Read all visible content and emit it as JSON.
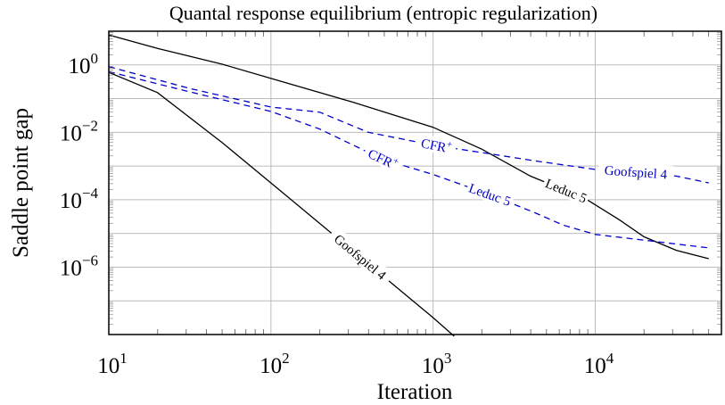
{
  "chart_data": {
    "type": "line",
    "title": "Quantal response equilibrium (entropic regularization)",
    "xlabel": "Iteration",
    "ylabel": "Saddle point gap",
    "xscale": "log",
    "yscale": "log",
    "xlim": [
      10,
      60000
    ],
    "ylim": [
      1e-08,
      10
    ],
    "grid": true,
    "x_ticks": [
      {
        "base": "10",
        "exp": "1",
        "value": 10
      },
      {
        "base": "10",
        "exp": "2",
        "value": 100
      },
      {
        "base": "10",
        "exp": "3",
        "value": 1000
      },
      {
        "base": "10",
        "exp": "4",
        "value": 10000
      }
    ],
    "y_ticks": [
      {
        "base": "10",
        "exp": "0",
        "value": 1
      },
      {
        "base": "10",
        "exp": "−2",
        "value": 0.01
      },
      {
        "base": "10",
        "exp": "−4",
        "value": 0.0001
      },
      {
        "base": "10",
        "exp": "−6",
        "value": 1e-06
      }
    ],
    "series": [
      {
        "name": "Leduc 5",
        "color": "#000000",
        "dash": false,
        "points_log10": [
          [
            1,
            0.89
          ],
          [
            1.3,
            0.49
          ],
          [
            1.7,
            0.02
          ],
          [
            2.0,
            -0.4
          ],
          [
            2.5,
            -1.1
          ],
          [
            3.0,
            -1.85
          ],
          [
            3.3,
            -2.5
          ],
          [
            3.6,
            -3.3
          ],
          [
            3.94,
            -3.97
          ],
          [
            4.0,
            -4.15
          ],
          [
            4.15,
            -4.6
          ],
          [
            4.3,
            -5.1
          ],
          [
            4.5,
            -5.5
          ],
          [
            4.7,
            -5.75
          ]
        ],
        "label_at": 3.82
      },
      {
        "name": "Goofspiel 4",
        "color": "#000000",
        "dash": false,
        "points_log10": [
          [
            1,
            -0.22
          ],
          [
            1.3,
            -0.82
          ],
          [
            1.7,
            -2.31
          ],
          [
            2.09,
            -3.86
          ],
          [
            2.5,
            -5.5
          ],
          [
            3.0,
            -7.5
          ],
          [
            3.13,
            -8.05
          ]
        ],
        "label_at": 2.55
      },
      {
        "name": "Goofspiel 4",
        "method": "CFR",
        "method_sup": "+",
        "color": "#0000cc",
        "dash": true,
        "points_log10": [
          [
            1,
            -0.05
          ],
          [
            1.5,
            -0.7
          ],
          [
            2.0,
            -1.25
          ],
          [
            2.3,
            -1.4
          ],
          [
            2.6,
            -2.0
          ],
          [
            3.02,
            -2.4
          ],
          [
            3.3,
            -2.6
          ],
          [
            3.63,
            -2.85
          ],
          [
            4.0,
            -3.1
          ],
          [
            4.3,
            -3.2
          ],
          [
            4.5,
            -3.3
          ],
          [
            4.7,
            -3.5
          ]
        ],
        "label_at": 4.25,
        "method_label_at": 3.02
      },
      {
        "name": "Leduc 5",
        "method": "CFR",
        "method_sup": "+",
        "color": "#0000cc",
        "dash": true,
        "points_log10": [
          [
            1,
            -0.2
          ],
          [
            1.5,
            -0.8
          ],
          [
            2.0,
            -1.38
          ],
          [
            2.3,
            -1.9
          ],
          [
            2.69,
            -2.8
          ],
          [
            3.0,
            -3.25
          ],
          [
            3.35,
            -3.85
          ],
          [
            3.63,
            -4.39
          ],
          [
            3.8,
            -4.75
          ],
          [
            4.0,
            -5.03
          ],
          [
            4.3,
            -5.2
          ],
          [
            4.7,
            -5.43
          ]
        ],
        "label_at": 3.35,
        "method_label_at": 2.69
      }
    ]
  }
}
